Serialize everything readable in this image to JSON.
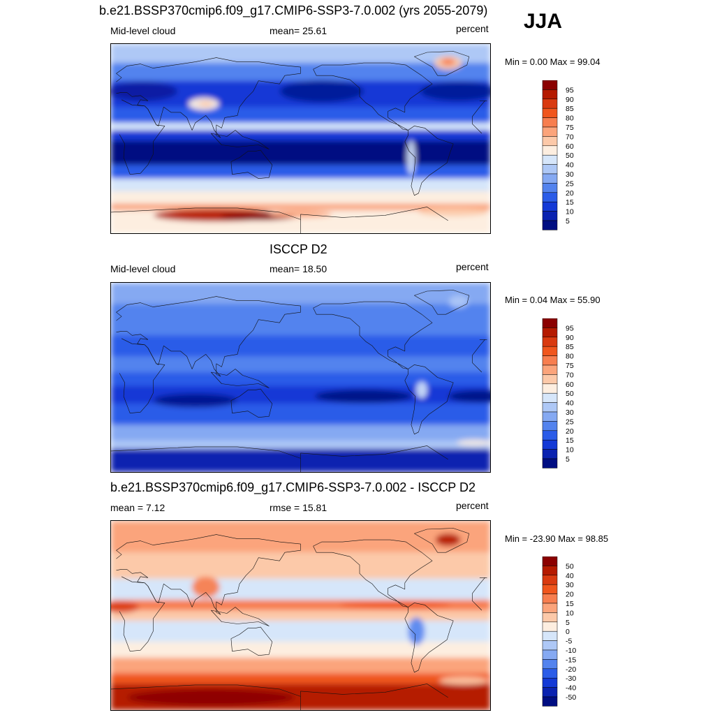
{
  "figure": {
    "season": "JJA",
    "panels": [
      {
        "id": "model",
        "title": "b.e21.BSSP370cmip6.f09_g17.CMIP6-SSP3-7.0.002 (yrs 2055-2079)",
        "left_label": "Mid-level cloud",
        "center_label": "mean=  25.61",
        "right_label": "percent",
        "minmax": "Min =   0.00 Max =  99.04",
        "colorbar": {
          "labels": [
            "95",
            "90",
            "85",
            "80",
            "75",
            "70",
            "60",
            "50",
            "40",
            "30",
            "25",
            "20",
            "15",
            "10",
            "5"
          ],
          "colors": [
            "#8b0000",
            "#b51a00",
            "#d93a10",
            "#f0561d",
            "#f77e4f",
            "#fba47b",
            "#fcc9a9",
            "#fdeee0",
            "#d6e6fa",
            "#aec8f6",
            "#85a9f2",
            "#5383ee",
            "#2b5ce8",
            "#1339d6",
            "#0a22b0",
            "#000e82"
          ]
        },
        "field": "model"
      },
      {
        "id": "obs",
        "title": "ISCCP D2",
        "left_label": "Mid-level cloud",
        "center_label": "mean=  18.50",
        "right_label": "percent",
        "minmax": "Min =   0.04 Max =  55.90",
        "colorbar": {
          "labels": [
            "95",
            "90",
            "85",
            "80",
            "75",
            "70",
            "60",
            "50",
            "40",
            "30",
            "25",
            "20",
            "15",
            "10",
            "5"
          ],
          "colors": [
            "#8b0000",
            "#b51a00",
            "#d93a10",
            "#f0561d",
            "#f77e4f",
            "#fba47b",
            "#fcc9a9",
            "#fdeee0",
            "#d6e6fa",
            "#aec8f6",
            "#85a9f2",
            "#5383ee",
            "#2b5ce8",
            "#1339d6",
            "#0a22b0",
            "#000e82"
          ]
        },
        "field": "obs"
      },
      {
        "id": "diff",
        "title": "b.e21.BSSP370cmip6.f09_g17.CMIP6-SSP3-7.0.002 - ISCCP D2",
        "left_label": "mean =   7.12",
        "center_label": "rmse =  15.81",
        "right_label": "percent",
        "minmax": "Min = -23.90 Max =  98.85",
        "colorbar": {
          "labels": [
            "50",
            "40",
            "30",
            "20",
            "15",
            "10",
            "5",
            "0",
            "-5",
            "-10",
            "-15",
            "-20",
            "-30",
            "-40",
            "-50"
          ],
          "colors": [
            "#8b0000",
            "#b51a00",
            "#d93a10",
            "#f0561d",
            "#f77e4f",
            "#fba47b",
            "#fcc9a9",
            "#fdeee0",
            "#d6e6fa",
            "#aec8f6",
            "#85a9f2",
            "#5383ee",
            "#2b5ce8",
            "#1339d6",
            "#0a22b0",
            "#000e82"
          ]
        },
        "field": "diff"
      }
    ]
  }
}
